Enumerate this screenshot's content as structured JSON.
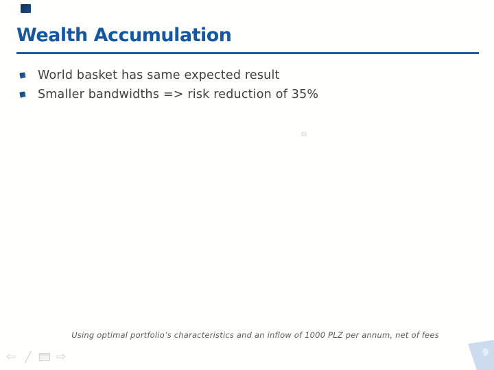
{
  "slide": {
    "title": "Wealth Accumulation",
    "bullets": [
      "World basket has same expected result",
      "Smaller bandwidths => risk reduction of 35%"
    ],
    "footnote": "Using optimal portfolio’s characteristics and an inflow of 1000 PLZ per annum, net of fees",
    "page_number": "9"
  },
  "nav": {
    "back_icon": "⇦",
    "pen_icon": "╱",
    "menu_icon": "▭",
    "forward_icon": "⇨"
  },
  "colors": {
    "title_blue": "#1558A0",
    "rule_blue": "#1D5CA6",
    "body_text_gray": "#3F3F3F",
    "footnote_gray": "#595959",
    "bullet_navy_dark": "#143A66",
    "bullet_navy_light": "#2F6DB3",
    "corner_accent_navy": "#17365D",
    "tab_dark_blue": "#0F3D6D",
    "tab_mid_blue": "#2E75B6",
    "tab_light_blue": "#5B9BD5",
    "page_number_text": "#E9F2FB",
    "nav_icon_gray": "#D3D0C9",
    "background": "#FFFFFE"
  }
}
